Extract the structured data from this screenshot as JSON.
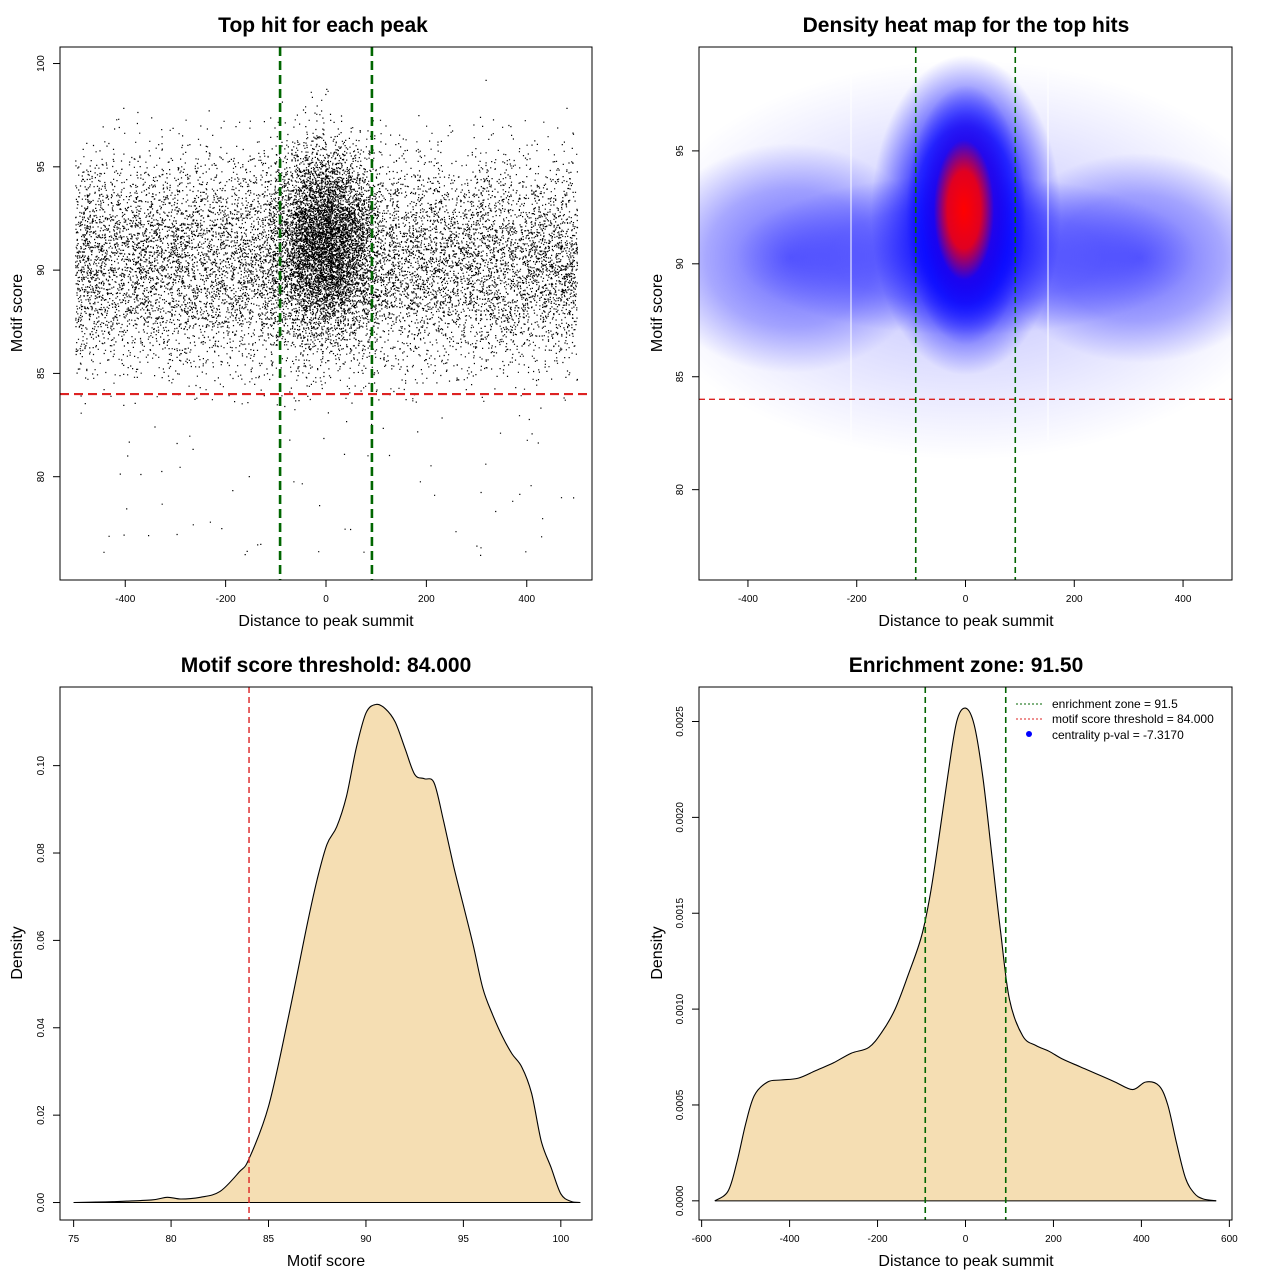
{
  "colors": {
    "threshold": "#dd2222",
    "zone": "#006600",
    "fill": "#f5deb3",
    "heat_low": "#ffffff",
    "heat_mid": "#0000ff",
    "heat_high": "#ff0000"
  },
  "chart_data": [
    {
      "id": "scatter",
      "type": "scatter",
      "title": "Top hit for each peak",
      "xlabel": "Distance to peak summit",
      "ylabel": "Motif score",
      "xlim": [
        -530,
        530
      ],
      "ylim": [
        75,
        100.8
      ],
      "xticks": [
        -400,
        -200,
        0,
        200,
        400
      ],
      "yticks": [
        80,
        85,
        90,
        95,
        100
      ],
      "grid": false,
      "hline": 84,
      "vlines": [
        -91.5,
        91.5
      ],
      "note": "approximately 20000 points; uniform in x from -500 to 500, concentrated near 0 and 88-97 score",
      "x_range_points": [
        -500,
        500
      ],
      "y_range_points": [
        76,
        99.8
      ]
    },
    {
      "id": "heatmap",
      "type": "heatmap",
      "title": "Density heat map for the top hits",
      "xlabel": "Distance to peak summit",
      "ylabel": "Motif score",
      "xlim": [
        -490,
        490
      ],
      "ylim": [
        76,
        99.6
      ],
      "xticks": [
        -400,
        -200,
        0,
        200,
        400
      ],
      "yticks": [
        80,
        85,
        90,
        95
      ],
      "grid": false,
      "hline": 84,
      "vlines": [
        -91.5,
        91.5
      ],
      "peak": {
        "x": 0,
        "y": [
          91.3,
          93.6
        ]
      },
      "palette": [
        "white",
        "blue",
        "red"
      ]
    },
    {
      "id": "score_density",
      "type": "area",
      "title": "Motif score threshold: 84.000",
      "xlabel": "Motif score",
      "ylabel": "Density",
      "xlim": [
        74.3,
        101.6
      ],
      "ylim": [
        -0.004,
        0.118
      ],
      "xticks": [
        75,
        80,
        85,
        90,
        95,
        100
      ],
      "yticks": [
        0.0,
        0.02,
        0.04,
        0.06,
        0.08,
        0.1
      ],
      "ytick_labels": [
        "0.00",
        "0.02",
        "0.04",
        "0.06",
        "0.08",
        "0.10"
      ],
      "grid": false,
      "vline": 84,
      "x": [
        75,
        77,
        79,
        79.8,
        80.5,
        81.5,
        82.5,
        83.5,
        84,
        85,
        86,
        87,
        87.5,
        88,
        88.5,
        89,
        89.5,
        90,
        90.5,
        91,
        91.5,
        92,
        92.5,
        93,
        93.5,
        94,
        94.5,
        95,
        95.5,
        96,
        96.5,
        97,
        97.5,
        98,
        98.5,
        99,
        99.5,
        100,
        100.5,
        101
      ],
      "y": [
        0.0,
        0.0002,
        0.0006,
        0.0012,
        0.0008,
        0.0012,
        0.0025,
        0.007,
        0.01,
        0.022,
        0.042,
        0.064,
        0.074,
        0.082,
        0.086,
        0.093,
        0.104,
        0.112,
        0.114,
        0.113,
        0.11,
        0.104,
        0.098,
        0.097,
        0.096,
        0.087,
        0.077,
        0.068,
        0.059,
        0.049,
        0.043,
        0.038,
        0.034,
        0.031,
        0.025,
        0.014,
        0.008,
        0.002,
        0.0003,
        0.0
      ]
    },
    {
      "id": "distance_density",
      "type": "area",
      "title": "Enrichment zone: 91.50",
      "xlabel": "Distance to peak summit",
      "ylabel": "Density",
      "xlim": [
        -606,
        606
      ],
      "ylim": [
        -0.0001,
        0.00268
      ],
      "xticks": [
        -600,
        -400,
        -200,
        0,
        200,
        400,
        600
      ],
      "yticks": [
        0.0,
        0.0005,
        0.001,
        0.0015,
        0.002,
        0.0025
      ],
      "ytick_labels": [
        "0.0000",
        "0.0005",
        "0.0010",
        "0.0015",
        "0.0020",
        "0.0025"
      ],
      "grid": false,
      "vlines": [
        -91.5,
        91.5
      ],
      "x": [
        -570,
        -540,
        -520,
        -500,
        -480,
        -450,
        -420,
        -380,
        -340,
        -300,
        -260,
        -220,
        -190,
        -160,
        -130,
        -100,
        -80,
        -60,
        -40,
        -20,
        0,
        20,
        40,
        60,
        80,
        100,
        130,
        160,
        190,
        220,
        260,
        300,
        340,
        380,
        410,
        440,
        460,
        480,
        500,
        520,
        540,
        570
      ],
      "y": [
        0.0,
        5e-05,
        0.0002,
        0.0004,
        0.00055,
        0.00062,
        0.00063,
        0.00064,
        0.00068,
        0.00072,
        0.00077,
        0.0008,
        0.00088,
        0.001,
        0.00118,
        0.00138,
        0.0016,
        0.0019,
        0.00222,
        0.0025,
        0.00257,
        0.00248,
        0.0022,
        0.0018,
        0.0014,
        0.00105,
        0.00086,
        0.00081,
        0.00078,
        0.00074,
        0.0007,
        0.00066,
        0.00062,
        0.00058,
        0.00062,
        0.0006,
        0.0005,
        0.0003,
        0.00012,
        4e-05,
        1e-05,
        0.0
      ]
    }
  ],
  "legend": {
    "placement": "top-right",
    "items": [
      {
        "label": "enrichment zone = 91.5",
        "symbol": "dotted-line",
        "color": "#006600"
      },
      {
        "label": "motif score threshold = 84.000",
        "symbol": "dotted-line",
        "color": "#dd2222"
      },
      {
        "label": "centrality p-val = -7.3170",
        "symbol": "dot",
        "color": "#0000ff"
      }
    ]
  }
}
